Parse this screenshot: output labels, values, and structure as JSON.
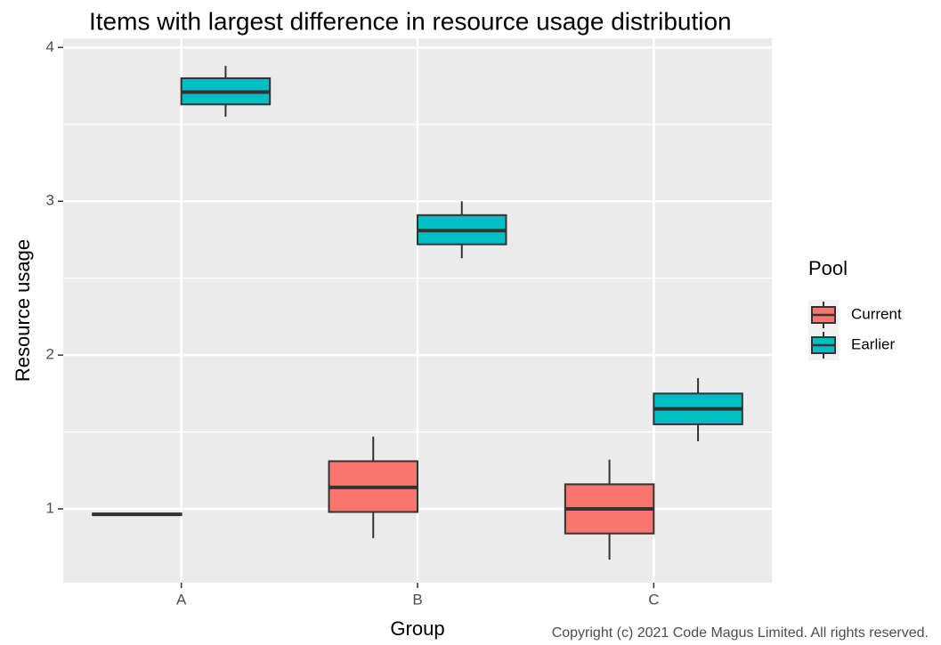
{
  "chart_data": {
    "type": "boxplot",
    "title": "Items with largest difference in resource usage distribution",
    "xlabel": "Group",
    "ylabel": "Resource usage",
    "categories": [
      "A",
      "B",
      "C"
    ],
    "ylim": [
      0.52,
      4.06
    ],
    "yticks": [
      1,
      2,
      3,
      4
    ],
    "grid": true,
    "legend": {
      "title": "Pool",
      "position": "right",
      "entries": [
        "Current",
        "Earlier"
      ]
    },
    "series": [
      {
        "name": "Current",
        "color": "#F8766D",
        "boxes": [
          {
            "category": "A",
            "min": 0.96,
            "q1": 0.96,
            "median": 0.965,
            "q3": 0.97,
            "max": 0.97
          },
          {
            "category": "B",
            "min": 0.81,
            "q1": 0.98,
            "median": 1.14,
            "q3": 1.31,
            "max": 1.47
          },
          {
            "category": "C",
            "min": 0.67,
            "q1": 0.84,
            "median": 1.0,
            "q3": 1.16,
            "max": 1.32
          }
        ]
      },
      {
        "name": "Earlier",
        "color": "#00BFC4",
        "boxes": [
          {
            "category": "A",
            "min": 3.55,
            "q1": 3.63,
            "median": 3.71,
            "q3": 3.8,
            "max": 3.88
          },
          {
            "category": "B",
            "min": 2.63,
            "q1": 2.72,
            "median": 2.81,
            "q3": 2.91,
            "max": 3.0
          },
          {
            "category": "C",
            "min": 1.44,
            "q1": 1.55,
            "median": 1.65,
            "q3": 1.75,
            "max": 1.85
          }
        ]
      }
    ]
  },
  "caption": "Copyright (c) 2021 Code Magus Limited. All rights reserved."
}
